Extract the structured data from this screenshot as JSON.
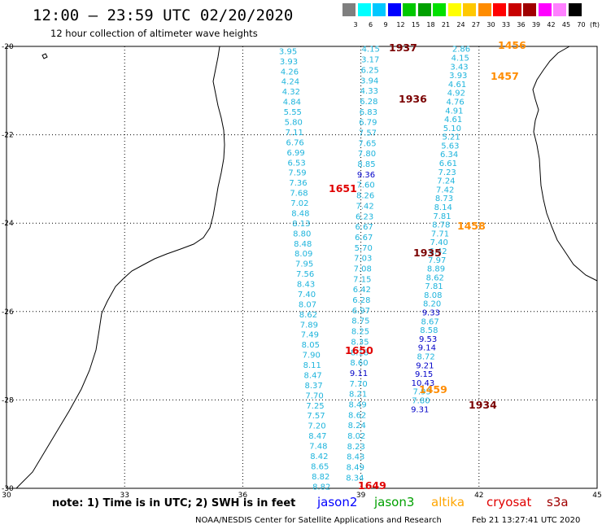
{
  "title": "12:00 – 23:59 UTC 02/20/2020",
  "subtitle": "12 hour collection of altimeter wave heights",
  "colorbar": {
    "labels": [
      "3",
      "6",
      "9",
      "12",
      "15",
      "18",
      "21",
      "24",
      "27",
      "30",
      "33",
      "36",
      "39",
      "42",
      "45",
      "70"
    ],
    "unit": "(ft)",
    "colors": [
      "#7f7f7f",
      "#00ffff",
      "#00c8ff",
      "#0000ff",
      "#00c800",
      "#00a000",
      "#00e000",
      "#ffff00",
      "#ffc800",
      "#ff8c00",
      "#ff0000",
      "#c80000",
      "#a00000",
      "#ff00ff",
      "#ff80ff",
      "#000000"
    ]
  },
  "map": {
    "lon_min": 30,
    "lon_max": 45,
    "lat_min": -30,
    "lat_max": -20,
    "lon_ticks": [
      "30",
      "33",
      "36",
      "39",
      "42",
      "45"
    ],
    "lat_ticks": [
      "-20",
      "-22",
      "-24",
      "-26",
      "-28",
      "-30"
    ],
    "lat_tick_values": [
      -20,
      -22,
      -24,
      -26,
      -28,
      -30
    ],
    "lon_tick_values": [
      30,
      33,
      36,
      39,
      42,
      45
    ]
  },
  "tracks": [
    {
      "id": "jason3_1651",
      "color": "#1eb4dc",
      "lon_start": 37.15,
      "lat_start": -20.1,
      "lon_end": 38.0,
      "lat_end": -29.95,
      "values": [
        "3.95",
        "3.93",
        "4.26",
        "4.24",
        "4.32",
        "4.84",
        "5.55",
        "5.80",
        "7.11",
        "6.76",
        "6.99",
        "6.53",
        "7.59",
        "7.36",
        "7.68",
        "7.02",
        "8.48",
        "8.13",
        "8.80",
        "8.48",
        "8.09",
        "7.95",
        "7.56",
        "8.43",
        "7.40",
        "8.07",
        "8.62",
        "7.89",
        "7.49",
        "8.05",
        "7.90",
        "8.11",
        "8.47",
        "8.37",
        "7.70",
        "7.25",
        "7.57",
        "7.20",
        "8.47",
        "7.48",
        "8.42",
        "8.65",
        "8.82",
        "8.82"
      ]
    },
    {
      "id": "cryosat_1937",
      "color": "#1eb4dc",
      "lon_start": 39.25,
      "lat_start": -20.05,
      "lon_end": 38.85,
      "lat_end": -29.75,
      "values": [
        "4.15",
        "3.17",
        "6.25",
        "3.94",
        "4.33",
        "6.28",
        "6.83",
        "6.79",
        "7.57",
        "7.65",
        "7.80",
        "8.85",
        "9.36",
        "7.60",
        "8.26",
        "7.42",
        "6.23",
        "6.67",
        "6.67",
        "5.70",
        "7.03",
        "7.08",
        "7.15",
        "6.42",
        "6.28",
        "6.97",
        "8.75",
        "8.25",
        "8.35",
        "8.18",
        "8.60",
        "9.11",
        "7.70",
        "8.21",
        "8.49",
        "8.62",
        "8.24",
        "8.02",
        "8.23",
        "8.43",
        "8.49",
        "8.34"
      ]
    },
    {
      "id": "altika_1456",
      "color": "#1eb4dc",
      "lon_start": 41.55,
      "lat_start": -20.05,
      "lon_end": 40.5,
      "lat_end": -28.2,
      "values": [
        "2.86",
        "4.15",
        "3.43",
        "3.93",
        "4.61",
        "4.92",
        "4.76",
        "4.91",
        "4.61",
        "5.10",
        "5.21",
        "5.63",
        "6.34",
        "6.61",
        "7.23",
        "7.24",
        "7.42",
        "8.73",
        "8.14",
        "7.81",
        "8.78",
        "7.71",
        "7.40",
        "6.42",
        "7.97",
        "8.89",
        "8.62",
        "7.81",
        "8.08",
        "8.20",
        "9.33",
        "8.67",
        "8.58",
        "9.53",
        "9.14",
        "8.72",
        "9.21",
        "9.15",
        "10.43",
        "7.93",
        "7.80",
        "9.31"
      ]
    }
  ],
  "pass_labels": [
    {
      "text": "1937",
      "color": "#7a0000"
    },
    {
      "text": "1456",
      "color": "#ff8c00"
    },
    {
      "text": "1457",
      "color": "#ff8c00"
    },
    {
      "text": "1936",
      "color": "#7a0000"
    },
    {
      "text": "1651",
      "color": "#e00000"
    },
    {
      "text": "1458",
      "color": "#ff8c00"
    },
    {
      "text": "1935",
      "color": "#7a0000"
    },
    {
      "text": "1650",
      "color": "#e00000"
    },
    {
      "text": "1459",
      "color": "#ff8c00"
    },
    {
      "text": "1934",
      "color": "#7a0000"
    },
    {
      "text": "1649",
      "color": "#e00000"
    }
  ],
  "note": "note: 1) Time is in UTC; 2) SWH is in feet",
  "legend": [
    {
      "text": "jason2",
      "color": "#0000ff"
    },
    {
      "text": "jason3",
      "color": "#00a000"
    },
    {
      "text": "altika",
      "color": "#ffa500"
    },
    {
      "text": "cryosat",
      "color": "#e00000"
    },
    {
      "text": "s3a",
      "color": "#a00000"
    }
  ],
  "footer_left": "NOAA/NESDIS Center for Satellite Applications and Research",
  "footer_right": "Feb 21 13:27:41 UTC 2020"
}
